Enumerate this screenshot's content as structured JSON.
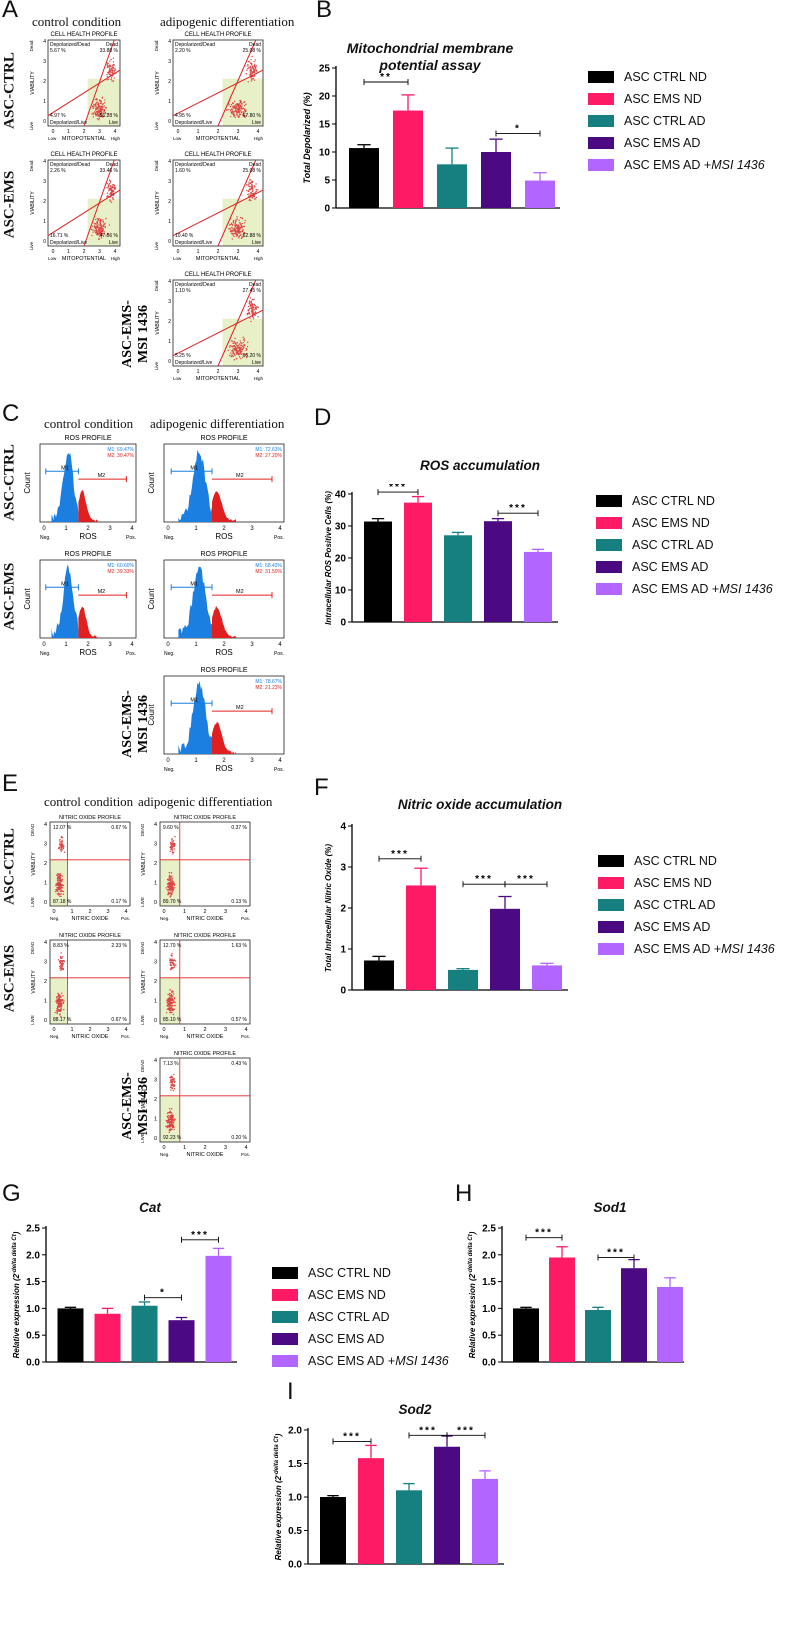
{
  "panels": [
    "A",
    "B",
    "C",
    "D",
    "E",
    "F",
    "G",
    "H",
    "I"
  ],
  "column_titles": {
    "control": "control condition",
    "adipogenic": "adipogenic differentiation"
  },
  "row_labels": {
    "ctrl": "ASC-CTRL",
    "ems": "ASC-EMS",
    "msi": "ASC-EMS-MSI 1436"
  },
  "msi_label_lines": [
    "ASC-EMS-",
    "MSI 1436"
  ],
  "legend": [
    "ASC CTRL ND",
    "ASC EMS ND",
    "ASC CTRL AD",
    "ASC EMS AD",
    "ASC EMS AD +"
  ],
  "legend_suffix": "MSI 1436",
  "colors": {
    "ctrl_nd": "#000000",
    "ems_nd": "#ff1a66",
    "ctrl_ad": "#168080",
    "ems_ad": "#4b0a82",
    "ems_ad_msi": "#b366ff",
    "flow_red": "#e02020",
    "flow_blue": "#1a7fe0",
    "quad_fill": "#e8f0c8"
  },
  "ch_plots": [
    {
      "title": "CELL HEALTH PROFILE",
      "ul_label": "Depolarized/Dead",
      "ul": "5.67 %",
      "ur_label": "Dead",
      "ur": "33.88 %",
      "ll": "4.97 %",
      "ll_label": "Depolarized/Live",
      "lr": "56.28 %",
      "lr_label": "Live",
      "xlabel": "MITOPOTENTIAL",
      "ylabel": "VIABILITY",
      "ticks": [
        "0",
        "1",
        "2",
        "3",
        "4"
      ],
      "xend": [
        "Low",
        "High"
      ],
      "yend": [
        "Live",
        "Dead"
      ]
    },
    {
      "title": "CELL HEALTH PROFILE",
      "ul_label": "Depolarized/Dead",
      "ul": "2.20 %",
      "ur_label": "Dead",
      "ur": "25.08 %",
      "ll": "4.95 %",
      "ll_label": "Depolarized/Live",
      "lr": "67.80 %",
      "lr_label": "Live",
      "xlabel": "MITOPOTENTIAL",
      "ylabel": "VIABILITY",
      "ticks": [
        "0",
        "1",
        "2",
        "3",
        "4"
      ],
      "xend": [
        "Low",
        "High"
      ],
      "yend": [
        "Live",
        "Dead"
      ]
    },
    {
      "title": "CELL HEALTH PROFILE",
      "ul_label": "Depolarized/Dead",
      "ul": "2.26 %",
      "ur_label": "Dead",
      "ur": "33.46 %",
      "ll": "16.71 %",
      "ll_label": "Depolarized/Live",
      "lr": "47.56 %",
      "lr_label": "Live",
      "xlabel": "MITOPOTENTIAL",
      "ylabel": "VIABILITY",
      "ticks": [
        "0",
        "1",
        "2",
        "3",
        "4"
      ],
      "xend": [
        "Low",
        "High"
      ],
      "yend": [
        "Live",
        "Dead"
      ]
    },
    {
      "title": "CELL HEALTH PROFILE",
      "ul_label": "Depolarized/Dead",
      "ul": "1.60 %",
      "ur_label": "Dead",
      "ur": "25.08 %",
      "ll": "10.40 %",
      "ll_label": "Depolarized/Live",
      "lr": "62.88 %",
      "lr_label": "Live",
      "xlabel": "MITOPOTENTIAL",
      "ylabel": "VIABILITY",
      "ticks": [
        "0",
        "1",
        "2",
        "3",
        "4"
      ],
      "xend": [
        "Low",
        "High"
      ],
      "yend": [
        "Live",
        "Dead"
      ]
    },
    {
      "title": "CELL HEALTH PROFILE",
      "ul_label": "Depolarized/Dead",
      "ul": "1.10 %",
      "ur_label": "Dead",
      "ur": "27.45 %",
      "ll": "5.25 %",
      "ll_label": "Depolarized/Live",
      "lr": "66.20 %",
      "lr_label": "Live",
      "xlabel": "MITOPOTENTIAL",
      "ylabel": "VIABILITY",
      "ticks": [
        "0",
        "1",
        "2",
        "3",
        "4"
      ],
      "xend": [
        "Low",
        "High"
      ],
      "yend": [
        "Live",
        "Dead"
      ]
    }
  ],
  "ros_plots": [
    {
      "title": "ROS PROFILE",
      "m1": "M1: 69.47%",
      "m2": "M2: 30.47%",
      "xlabel": "ROS",
      "ylabel": "Count",
      "ticks": [
        "0",
        "1",
        "2",
        "3",
        "4"
      ],
      "xend": [
        "Neg.",
        "Pos."
      ],
      "m1_tag": "M1",
      "m2_tag": "M2"
    },
    {
      "title": "ROS PROFILE",
      "m1": "M1: 72.63%",
      "m2": "M2: 27.20%",
      "xlabel": "ROS",
      "ylabel": "Count",
      "ticks": [
        "0",
        "1",
        "2",
        "3",
        "4"
      ],
      "xend": [
        "Neg.",
        "Pos."
      ],
      "m1_tag": "M1",
      "m2_tag": "M2"
    },
    {
      "title": "ROS PROFILE",
      "m1": "M1: 60.60%",
      "m2": "M2: 39.33%",
      "xlabel": "ROS",
      "ylabel": "Count",
      "ticks": [
        "0",
        "1",
        "2",
        "3",
        "4"
      ],
      "xend": [
        "Neg.",
        "Pos."
      ],
      "m1_tag": "M1",
      "m2_tag": "M2"
    },
    {
      "title": "ROS PROFILE",
      "m1": "M1: 68.43%",
      "m2": "M2: 31.50%",
      "xlabel": "ROS",
      "ylabel": "Count",
      "ticks": [
        "0",
        "1",
        "2",
        "3",
        "4"
      ],
      "xend": [
        "Neg.",
        "Pos."
      ],
      "m1_tag": "M1",
      "m2_tag": "M2"
    },
    {
      "title": "ROS PROFILE",
      "m1": "M1: 78.67%",
      "m2": "M2: 21.23%",
      "xlabel": "ROS",
      "ylabel": "Count",
      "ticks": [
        "0",
        "1",
        "2",
        "3",
        "4"
      ],
      "xend": [
        "Neg.",
        "Pos."
      ],
      "m1_tag": "M1",
      "m2_tag": "M2"
    }
  ],
  "no_plots": [
    {
      "title": "NITRIC OXIDE PROFILE",
      "ul": "12.07 %",
      "ur": "0.67 %",
      "ll": "87.18 %",
      "lr": "0.17 %",
      "xlabel": "NITRIC OXIDE",
      "ylabel": "VIABILITY",
      "ticks": [
        "0",
        "1",
        "2",
        "3",
        "4"
      ],
      "xend": [
        "Neg.",
        "Pos."
      ],
      "yend": [
        "LIVE",
        "DEAD"
      ]
    },
    {
      "title": "NITRIC OXIDE PROFILE",
      "ul": "9.60 %",
      "ur": "0.37 %",
      "ll": "89.70 %",
      "lr": "0.13 %",
      "xlabel": "NITRIC OXIDE",
      "ylabel": "VIABILITY",
      "ticks": [
        "0",
        "1",
        "2",
        "3",
        "4"
      ],
      "xend": [
        "Neg.",
        "Pos."
      ],
      "yend": [
        "LIVE",
        "DEAD"
      ]
    },
    {
      "title": "NITRIC OXIDE PROFILE",
      "ul": "8.83 %",
      "ur": "2.33 %",
      "ll": "88.17 %",
      "lr": "0.67 %",
      "xlabel": "NITRIC OXIDE",
      "ylabel": "VIABILITY",
      "ticks": [
        "0",
        "1",
        "2",
        "3",
        "4"
      ],
      "xend": [
        "Neg.",
        "Pos."
      ],
      "yend": [
        "LIVE",
        "DEAD"
      ]
    },
    {
      "title": "NITRIC OXIDE PROFILE",
      "ul": "12.70 %",
      "ur": "1.63 %",
      "ll": "85.10 %",
      "lr": "0.57 %",
      "xlabel": "NITRIC OXIDE",
      "ylabel": "VIABILITY",
      "ticks": [
        "0",
        "1",
        "2",
        "3",
        "4"
      ],
      "xend": [
        "Neg.",
        "Pos."
      ],
      "yend": [
        "LIVE",
        "DEAD"
      ]
    },
    {
      "title": "NITRIC OXIDE PROFILE",
      "ul": "7.13 %",
      "ur": "0.43 %",
      "ll": "92.23 %",
      "lr": "0.20 %",
      "xlabel": "NITRIC OXIDE",
      "ylabel": "VIABILITY",
      "ticks": [
        "0",
        "1",
        "2",
        "3",
        "4"
      ],
      "xend": [
        "Neg.",
        "Pos."
      ],
      "yend": [
        "LIVE",
        "DEAD"
      ]
    }
  ],
  "chart_data": [
    {
      "id": "B",
      "type": "bar",
      "title_lines": [
        "Mitochondrial membrane",
        "potential assay"
      ],
      "ylabel": "Total Depolarized (%)",
      "ylim": [
        0,
        25
      ],
      "ticks": [
        0,
        5,
        10,
        15,
        20,
        25
      ],
      "categories": [
        "ASC CTRL ND",
        "ASC EMS ND",
        "ASC CTRL AD",
        "ASC EMS AD",
        "ASC EMS AD +MSI 1436"
      ],
      "values": [
        10.7,
        17.4,
        7.8,
        10.0,
        4.9
      ],
      "errors": [
        0.6,
        2.8,
        2.9,
        2.3,
        1.4
      ],
      "sig": [
        {
          "from": 0,
          "to": 1,
          "level": 22.5,
          "label": "**"
        },
        {
          "from": 3,
          "to": 4,
          "level": 13.3,
          "label": "*"
        }
      ]
    },
    {
      "id": "D",
      "type": "bar",
      "title_lines": [
        "ROS accumulation"
      ],
      "ylabel": "Intracellular ROS Positive Cells (%)",
      "ylim": [
        0,
        40
      ],
      "ticks": [
        0,
        10,
        20,
        30,
        40
      ],
      "categories": [
        "ASC CTRL ND",
        "ASC EMS ND",
        "ASC CTRL AD",
        "ASC EMS AD",
        "ASC EMS AD +MSI 1436"
      ],
      "values": [
        31.4,
        37.3,
        27.1,
        31.5,
        21.9
      ],
      "errors": [
        0.9,
        1.9,
        0.9,
        0.8,
        0.8
      ],
      "sig": [
        {
          "from": 0,
          "to": 1,
          "level": 40.6,
          "label": "***"
        },
        {
          "from": 3,
          "to": 4,
          "level": 34.0,
          "label": "***"
        }
      ]
    },
    {
      "id": "F",
      "type": "bar",
      "title_lines": [
        "Nitric oxide accumulation"
      ],
      "ylabel": "Total Intracellular Nitric Oxide (%)",
      "ylim": [
        0,
        4
      ],
      "ticks": [
        0,
        1,
        2,
        3,
        4
      ],
      "categories": [
        "ASC CTRL ND",
        "ASC EMS ND",
        "ASC CTRL AD",
        "ASC EMS AD",
        "ASC EMS AD +MSI 1436"
      ],
      "values": [
        0.72,
        2.55,
        0.49,
        1.98,
        0.6
      ],
      "errors": [
        0.1,
        0.42,
        0.03,
        0.3,
        0.05
      ],
      "sig": [
        {
          "from": 0,
          "to": 1,
          "level": 3.2,
          "label": "***"
        },
        {
          "from": 2,
          "to": 3,
          "level": 2.58,
          "label": "***"
        },
        {
          "from": 3,
          "to": 4,
          "level": 2.58,
          "label": "***"
        }
      ]
    },
    {
      "id": "G",
      "type": "bar",
      "title_lines": [
        "Cat"
      ],
      "ylabel": "Relative expression (2^-delta delta Ct)",
      "ylim": [
        0,
        2.5
      ],
      "ticks": [
        0.0,
        0.5,
        1.0,
        1.5,
        2.0,
        2.5
      ],
      "categories": [
        "ASC CTRL ND",
        "ASC EMS ND",
        "ASC CTRL AD",
        "ASC EMS AD",
        "ASC EMS AD +MSI 1436"
      ],
      "values": [
        1.0,
        0.9,
        1.05,
        0.78,
        1.98
      ],
      "errors": [
        0.02,
        0.1,
        0.07,
        0.05,
        0.14
      ],
      "sig": [
        {
          "from": 2,
          "to": 3,
          "level": 1.2,
          "label": "*"
        },
        {
          "from": 3,
          "to": 4,
          "level": 2.28,
          "label": "***"
        }
      ]
    },
    {
      "id": "H",
      "type": "bar",
      "title_lines": [
        "Sod1"
      ],
      "ylabel": "Relative expression (2^-delta delta Ct)",
      "ylim": [
        0,
        2.5
      ],
      "ticks": [
        0.0,
        0.5,
        1.0,
        1.5,
        2.0,
        2.5
      ],
      "categories": [
        "ASC CTRL ND",
        "ASC EMS ND",
        "ASC CTRL AD",
        "ASC EMS AD",
        "ASC EMS AD +MSI 1436"
      ],
      "values": [
        1.0,
        1.95,
        0.97,
        1.75,
        1.4
      ],
      "errors": [
        0.02,
        0.2,
        0.05,
        0.16,
        0.17
      ],
      "sig": [
        {
          "from": 0,
          "to": 1,
          "level": 2.32,
          "label": "***"
        },
        {
          "from": 2,
          "to": 3,
          "level": 1.95,
          "label": "***"
        }
      ]
    },
    {
      "id": "I",
      "type": "bar",
      "title_lines": [
        "Sod2"
      ],
      "ylabel": "Relative expression (2^-delta delta Ct)",
      "ylim": [
        0,
        2.0
      ],
      "ticks": [
        0.0,
        0.5,
        1.0,
        1.5,
        2.0
      ],
      "categories": [
        "ASC CTRL ND",
        "ASC EMS ND",
        "ASC CTRL AD",
        "ASC EMS AD",
        "ASC EMS AD +MSI 1436"
      ],
      "values": [
        1.0,
        1.58,
        1.1,
        1.75,
        1.27
      ],
      "errors": [
        0.02,
        0.19,
        0.1,
        0.16,
        0.12
      ],
      "sig": [
        {
          "from": 0,
          "to": 1,
          "level": 1.83,
          "label": "***"
        },
        {
          "from": 2,
          "to": 3,
          "level": 1.92,
          "label": "***"
        },
        {
          "from": 3,
          "to": 4,
          "level": 1.92,
          "label": "***"
        }
      ]
    }
  ]
}
